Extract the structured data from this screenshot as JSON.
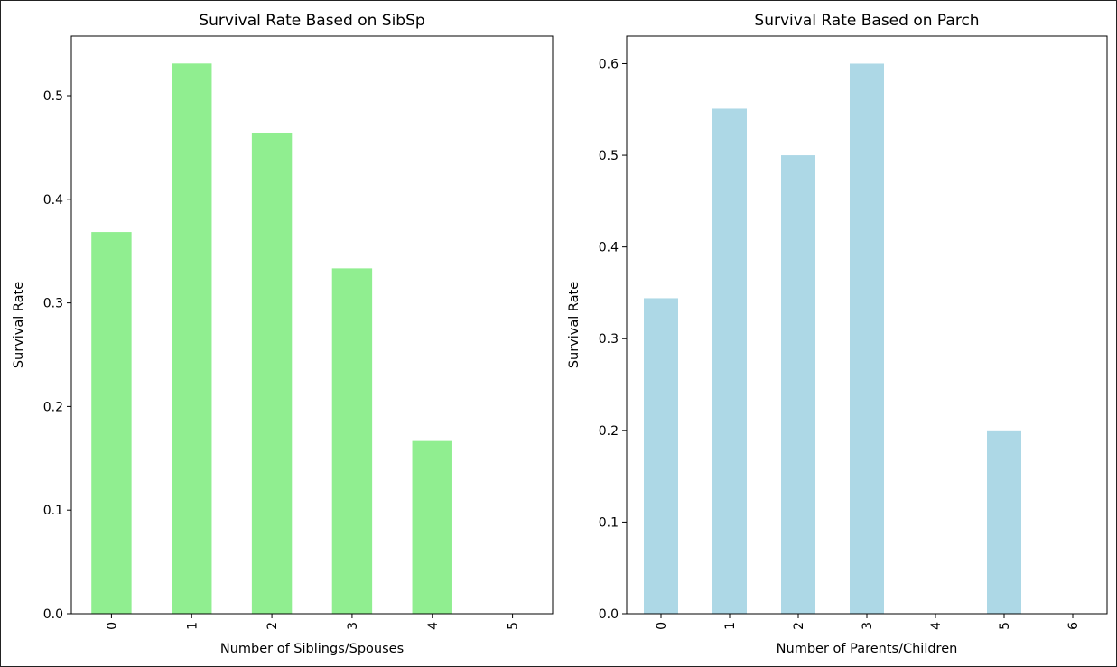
{
  "chart_data": [
    {
      "type": "bar",
      "title": "Survival Rate Based on SibSp",
      "xlabel": "Number of Siblings/Spouses",
      "ylabel": "Survival Rate",
      "categories": [
        "0",
        "1",
        "2",
        "3",
        "4",
        "5"
      ],
      "values": [
        0.3684,
        0.5311,
        0.4643,
        0.3333,
        0.1667,
        0.0
      ],
      "ylim": [
        0,
        0.5575
      ],
      "yticks": [
        0.0,
        0.1,
        0.2,
        0.3,
        0.4,
        0.5
      ],
      "ytick_labels": [
        "0.0",
        "0.1",
        "0.2",
        "0.3",
        "0.4",
        "0.5"
      ],
      "color": "#90ee90",
      "grid": false,
      "legend": "none"
    },
    {
      "type": "bar",
      "title": "Survival Rate Based on Parch",
      "xlabel": "Number of Parents/Children",
      "ylabel": "Survival Rate",
      "categories": [
        "0",
        "1",
        "2",
        "3",
        "4",
        "5",
        "6"
      ],
      "values": [
        0.3441,
        0.5508,
        0.5,
        0.6,
        0.0,
        0.2,
        0.0
      ],
      "ylim": [
        0,
        0.63
      ],
      "yticks": [
        0.0,
        0.1,
        0.2,
        0.3,
        0.4,
        0.5,
        0.6
      ],
      "ytick_labels": [
        "0.0",
        "0.1",
        "0.2",
        "0.3",
        "0.4",
        "0.5",
        "0.6"
      ],
      "color": "#add8e6",
      "grid": false,
      "legend": "none"
    }
  ]
}
